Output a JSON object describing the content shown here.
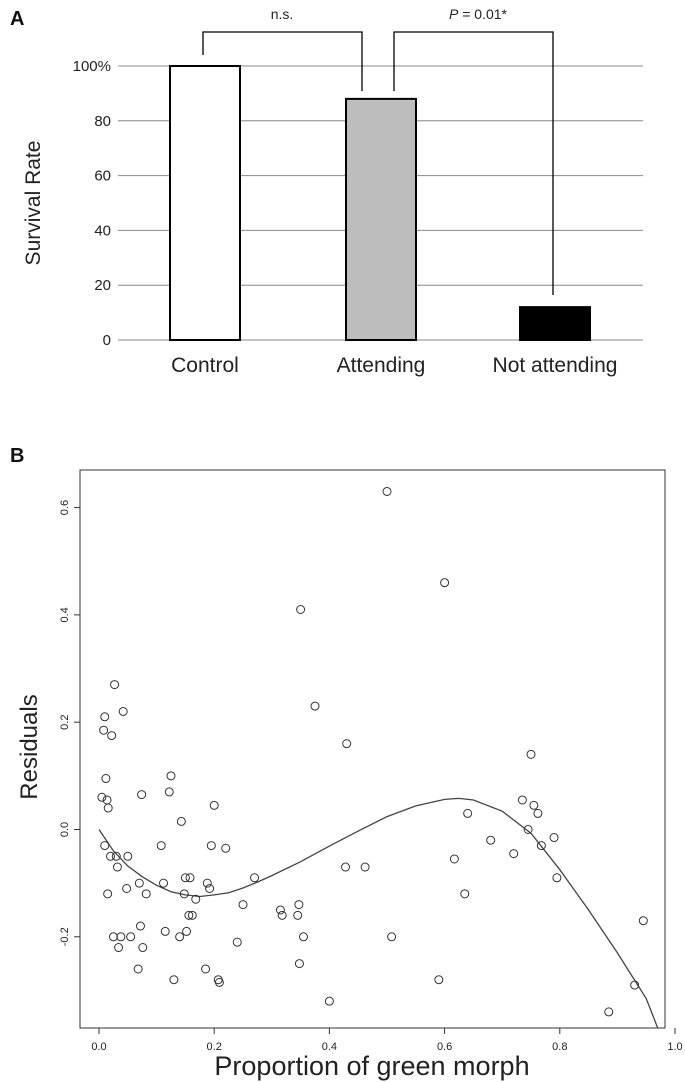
{
  "panel_a": {
    "letter": "A",
    "chart_data": {
      "type": "bar",
      "categories": [
        "Control",
        "Attending",
        "Not attending"
      ],
      "values": [
        100,
        88,
        12
      ],
      "colors": [
        "#ffffff",
        "#bdbdbd",
        "#000000"
      ],
      "ylabel": "Survival Rate",
      "ylim": [
        0,
        100
      ],
      "yticks": [
        0,
        20,
        40,
        60,
        80,
        100
      ],
      "ytick_labels": [
        "0",
        "20",
        "40",
        "60",
        "80",
        "100%"
      ],
      "grid": true,
      "annotations": [
        {
          "from": "Control",
          "to": "Attending",
          "label": "n.s."
        },
        {
          "from": "Attending",
          "to": "Not attending",
          "label_italic": "P",
          "label_rest": " = 0.01*"
        }
      ]
    }
  },
  "panel_b": {
    "letter": "B",
    "chart_data": {
      "type": "scatter",
      "xlabel": "Proportion of green morph",
      "ylabel": "Residuals",
      "xlim": [
        0.0,
        1.0
      ],
      "ylim": [
        -0.37,
        0.67
      ],
      "xticks": [
        0.0,
        0.2,
        0.4,
        0.6,
        0.8,
        1.0
      ],
      "xtick_labels": [
        "0.0",
        "0.2",
        "0.4",
        "0.6",
        "0.8",
        "1.0"
      ],
      "yticks": [
        -0.2,
        0.0,
        0.2,
        0.4,
        0.6
      ],
      "ytick_labels": [
        "-0.2",
        "0.0",
        "0.2",
        "0.4",
        "0.6"
      ],
      "points": [
        [
          0.005,
          0.06
        ],
        [
          0.008,
          0.185
        ],
        [
          0.01,
          0.21
        ],
        [
          0.012,
          0.095
        ],
        [
          0.014,
          0.055
        ],
        [
          0.016,
          0.04
        ],
        [
          0.01,
          -0.03
        ],
        [
          0.015,
          -0.12
        ],
        [
          0.02,
          -0.05
        ],
        [
          0.022,
          0.175
        ],
        [
          0.025,
          -0.2
        ],
        [
          0.027,
          0.27
        ],
        [
          0.03,
          -0.05
        ],
        [
          0.032,
          -0.07
        ],
        [
          0.034,
          -0.22
        ],
        [
          0.038,
          -0.2
        ],
        [
          0.042,
          0.22
        ],
        [
          0.048,
          -0.11
        ],
        [
          0.05,
          -0.05
        ],
        [
          0.055,
          -0.2
        ],
        [
          0.068,
          -0.26
        ],
        [
          0.07,
          -0.1
        ],
        [
          0.072,
          -0.18
        ],
        [
          0.074,
          0.065
        ],
        [
          0.076,
          -0.22
        ],
        [
          0.082,
          -0.12
        ],
        [
          0.108,
          -0.03
        ],
        [
          0.112,
          -0.1
        ],
        [
          0.115,
          -0.19
        ],
        [
          0.122,
          0.07
        ],
        [
          0.125,
          0.1
        ],
        [
          0.13,
          -0.28
        ],
        [
          0.14,
          -0.2
        ],
        [
          0.143,
          0.015
        ],
        [
          0.148,
          -0.12
        ],
        [
          0.15,
          -0.09
        ],
        [
          0.152,
          -0.19
        ],
        [
          0.156,
          -0.16
        ],
        [
          0.158,
          -0.09
        ],
        [
          0.162,
          -0.16
        ],
        [
          0.168,
          -0.13
        ],
        [
          0.185,
          -0.26
        ],
        [
          0.188,
          -0.1
        ],
        [
          0.192,
          -0.11
        ],
        [
          0.195,
          -0.03
        ],
        [
          0.2,
          0.045
        ],
        [
          0.207,
          -0.28
        ],
        [
          0.209,
          -0.285
        ],
        [
          0.22,
          -0.035
        ],
        [
          0.24,
          -0.21
        ],
        [
          0.25,
          -0.14
        ],
        [
          0.27,
          -0.09
        ],
        [
          0.315,
          -0.15
        ],
        [
          0.318,
          -0.16
        ],
        [
          0.345,
          -0.16
        ],
        [
          0.347,
          -0.14
        ],
        [
          0.348,
          -0.25
        ],
        [
          0.35,
          0.41
        ],
        [
          0.355,
          -0.2
        ],
        [
          0.4,
          -0.32
        ],
        [
          0.375,
          0.23
        ],
        [
          0.428,
          -0.07
        ],
        [
          0.43,
          0.16
        ],
        [
          0.462,
          -0.07
        ],
        [
          0.5,
          0.63
        ],
        [
          0.508,
          -0.2
        ],
        [
          0.59,
          -0.28
        ],
        [
          0.6,
          0.46
        ],
        [
          0.617,
          -0.055
        ],
        [
          0.635,
          -0.12
        ],
        [
          0.64,
          0.03
        ],
        [
          0.68,
          -0.02
        ],
        [
          0.72,
          -0.045
        ],
        [
          0.735,
          0.055
        ],
        [
          0.745,
          0.0
        ],
        [
          0.75,
          0.14
        ],
        [
          0.755,
          0.045
        ],
        [
          0.762,
          0.03
        ],
        [
          0.768,
          -0.03
        ],
        [
          0.79,
          -0.015
        ],
        [
          0.795,
          -0.09
        ],
        [
          0.885,
          -0.34
        ],
        [
          0.93,
          -0.29
        ],
        [
          0.945,
          -0.17
        ]
      ],
      "fit_curve": [
        [
          0.0,
          0.0
        ],
        [
          0.025,
          -0.04
        ],
        [
          0.05,
          -0.068
        ],
        [
          0.075,
          -0.088
        ],
        [
          0.1,
          -0.104
        ],
        [
          0.125,
          -0.116
        ],
        [
          0.15,
          -0.122
        ],
        [
          0.175,
          -0.125
        ],
        [
          0.2,
          -0.122
        ],
        [
          0.225,
          -0.118
        ],
        [
          0.25,
          -0.109
        ],
        [
          0.275,
          -0.098
        ],
        [
          0.3,
          -0.086
        ],
        [
          0.35,
          -0.06
        ],
        [
          0.4,
          -0.031
        ],
        [
          0.45,
          -0.003
        ],
        [
          0.5,
          0.024
        ],
        [
          0.55,
          0.044
        ],
        [
          0.6,
          0.056
        ],
        [
          0.625,
          0.058
        ],
        [
          0.65,
          0.055
        ],
        [
          0.7,
          0.034
        ],
        [
          0.75,
          -0.007
        ],
        [
          0.8,
          -0.075
        ],
        [
          0.85,
          -0.15
        ],
        [
          0.9,
          -0.23
        ],
        [
          0.95,
          -0.315
        ],
        [
          0.97,
          -0.37
        ]
      ]
    }
  }
}
